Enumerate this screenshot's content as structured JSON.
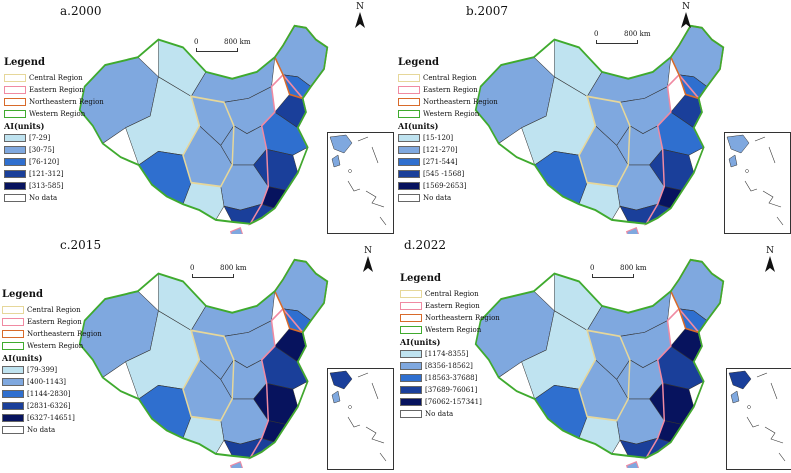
{
  "panels": [
    {
      "title": "a.2000",
      "legend_title": "Legend",
      "regions": [
        "Central Region",
        "Eastern Region",
        "Northeastern Region",
        "Western Region"
      ],
      "ai_title": "AI(units)",
      "classes": [
        "[7-29]",
        "[30-75]",
        "[76-120]",
        "[121-312]",
        "[313-585]"
      ],
      "no_data": "No data",
      "scale_zero": "0",
      "scale_label": "800 km",
      "north_label": "N"
    },
    {
      "title": "b.2007",
      "legend_title": "Legend",
      "regions": [
        "Central Region",
        "Eastern Region",
        "Northeastern Region",
        "Western Region"
      ],
      "ai_title": "AI(units)",
      "classes": [
        "[15-120]",
        "[121-270]",
        "[271-544]",
        "[545 -1568]",
        "[1569-2653]"
      ],
      "no_data": "No data",
      "scale_zero": "0",
      "scale_label": "800 km",
      "north_label": "N"
    },
    {
      "title": "c.2015",
      "legend_title": "Legend",
      "regions": [
        "Central Region",
        "Eastern Region",
        "Northeastern Region",
        "Western Region"
      ],
      "ai_title": "AI(units)",
      "classes": [
        "[79-399]",
        "[400-1143]",
        "[1144-2830]",
        "[2831-6326]",
        "[6327-14651]"
      ],
      "no_data": "No data",
      "scale_zero": "0",
      "scale_label": "800 km",
      "north_label": "N"
    },
    {
      "title": "d.2022",
      "legend_title": "Legend",
      "regions": [
        "Central Region",
        "Eastern Region",
        "Northeastern Region",
        "Western Region"
      ],
      "ai_title": "AI(units)",
      "classes": [
        "[1174-8355]",
        "[8356-18562]",
        "[18563-37688]",
        "[37689-76061]",
        "[76062-157341]"
      ],
      "no_data": "No data",
      "scale_zero": "0",
      "scale_label": "800 km",
      "north_label": "N"
    }
  ],
  "colors": {
    "class_fill": [
      "#bfe3f0",
      "#7fa8df",
      "#2f6fcf",
      "#1a3f9a",
      "#07135e"
    ],
    "central_border": "#e6d79a",
    "eastern_border": "#f08aa2",
    "northeastern_border": "#d86a2a",
    "western_border": "#3faa2e"
  }
}
